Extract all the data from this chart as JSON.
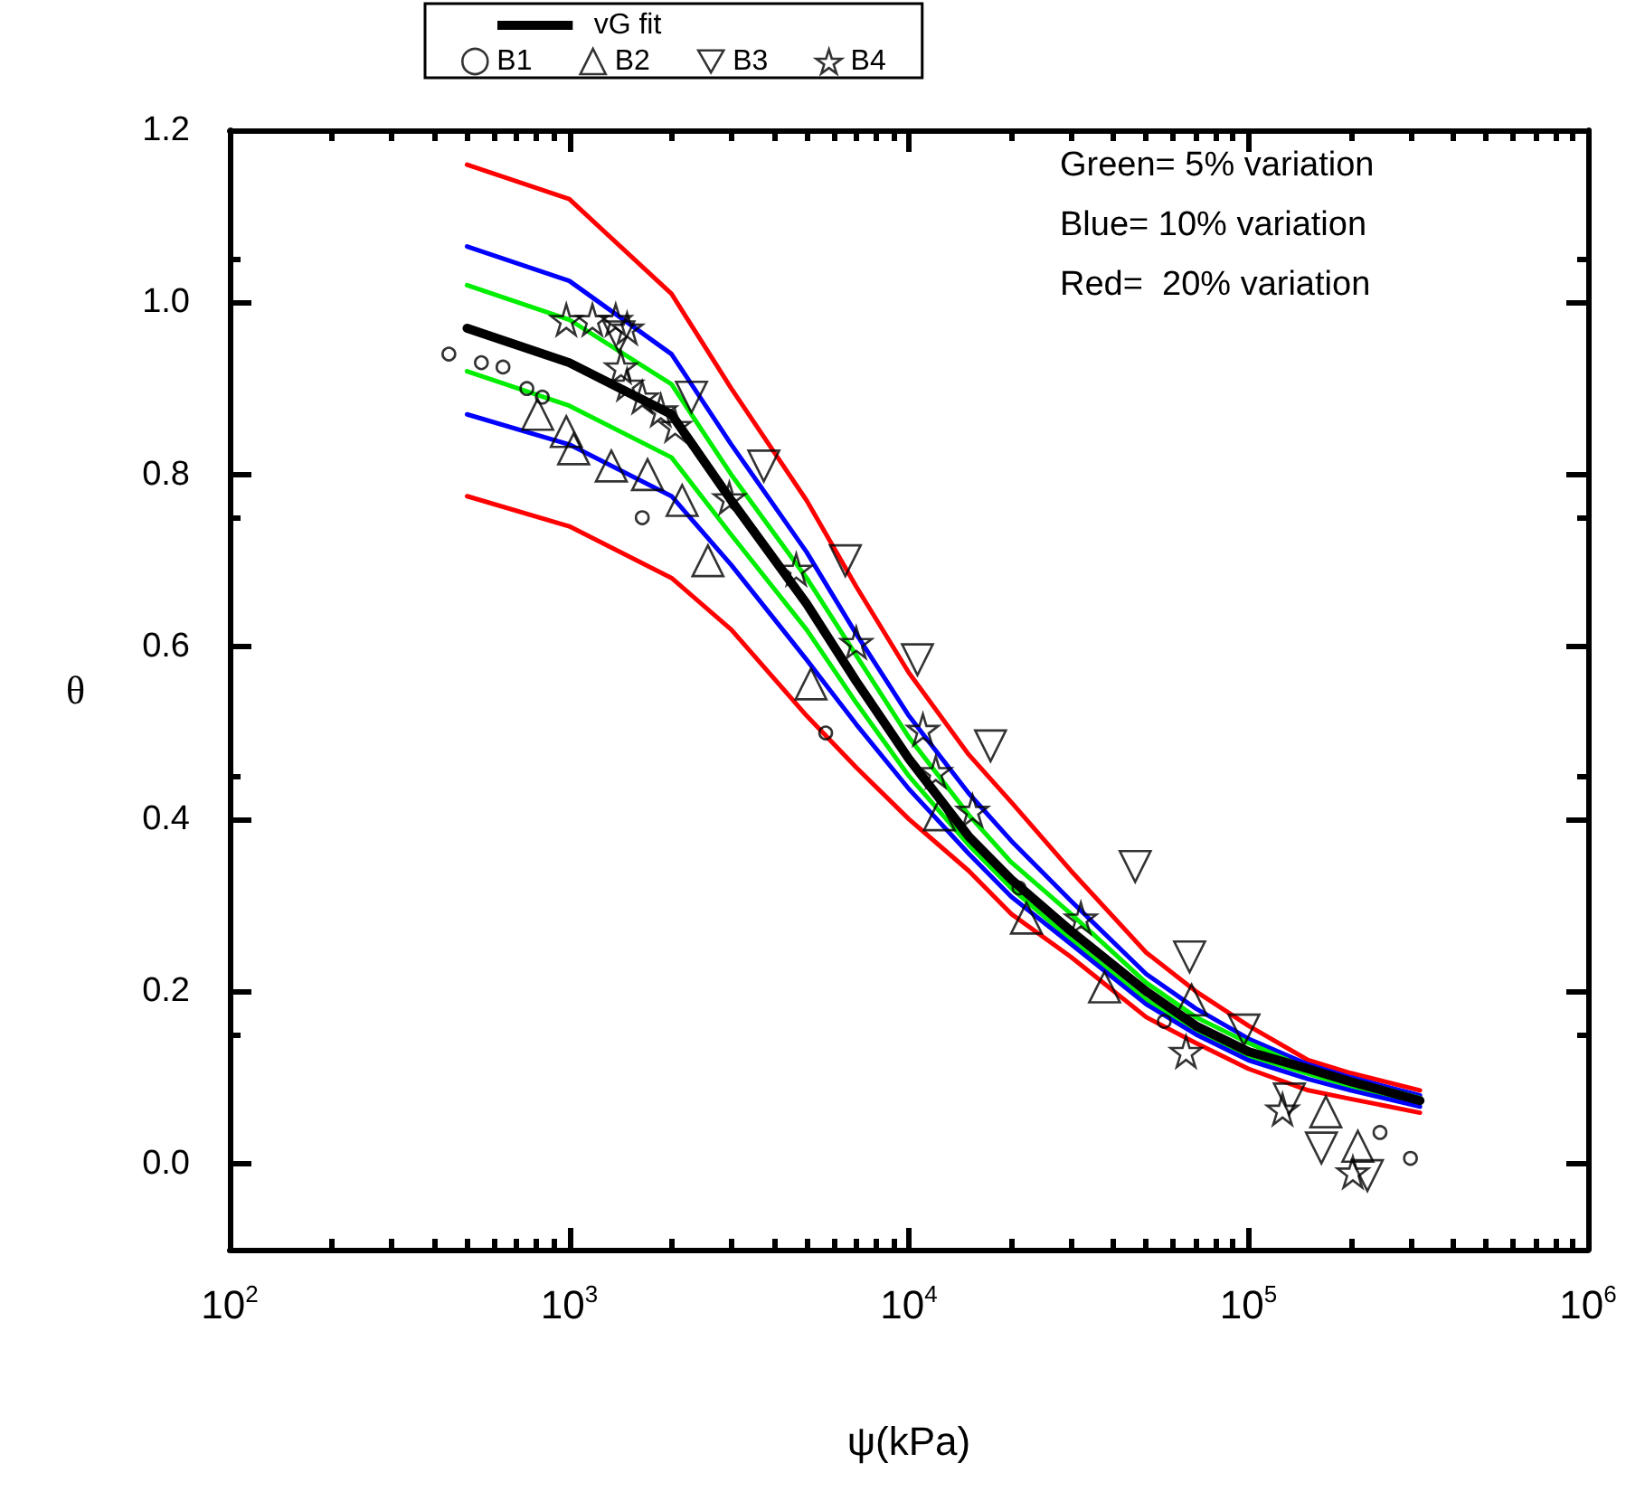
{
  "chart_data": {
    "type": "line",
    "xlabel": "ψ(kPa)",
    "ylabel": "θ",
    "log": "x",
    "xlim": [
      100,
      1000000
    ],
    "xticks": [
      {
        "value": 100,
        "label": "10$^{2}$"
      },
      {
        "value": 1000,
        "label": "10$^{3}$"
      },
      {
        "value": 10000,
        "label": "10$^{4}$"
      },
      {
        "value": 100000,
        "label": "10$^{5}$"
      },
      {
        "value": 1000000,
        "label": "10$^{6}$"
      }
    ],
    "ylim": [
      -0.1,
      1.2
    ],
    "yticks": [
      {
        "value": 0,
        "label": "0.0"
      },
      {
        "value": 0.2,
        "label": "0.2"
      },
      {
        "value": 0.4,
        "label": "0.4"
      },
      {
        "value": 0.6,
        "label": "0.6"
      },
      {
        "value": 0.8,
        "label": "0.8"
      },
      {
        "value": 1,
        "label": "1.0"
      },
      {
        "value": 1.2,
        "label": "1.2"
      }
    ],
    "grid": false,
    "legend": "top",
    "marker": "none",
    "line_style": "solid",
    "x": [
      500,
      1000,
      2000,
      3000,
      5000,
      7000,
      10000,
      15000,
      20000,
      30000,
      50000,
      70000,
      100000,
      150000,
      200000,
      320000
    ],
    "annotations": [
      "Green= 5% variation",
      "Blue= 10% variation",
      "Red=  20% variation"
    ],
    "series": [
      {
        "color": "#ff0000",
        "values": [
          1.16,
          1.12,
          1.01,
          0.9,
          0.77,
          0.67,
          0.57,
          0.475,
          0.42,
          0.34,
          0.245,
          0.2,
          0.16,
          0.12,
          0.105,
          0.085
        ]
      },
      {
        "color": "#0000ff",
        "values": [
          1.065,
          1.025,
          0.94,
          0.835,
          0.71,
          0.615,
          0.52,
          0.43,
          0.375,
          0.305,
          0.22,
          0.18,
          0.145,
          0.115,
          0.1,
          0.079
        ]
      },
      {
        "color": "#00ee00",
        "values": [
          1.02,
          0.98,
          0.905,
          0.8,
          0.68,
          0.59,
          0.495,
          0.405,
          0.35,
          0.29,
          0.21,
          0.17,
          0.14,
          0.11,
          0.097,
          0.076
        ]
      },
      {
        "color": "#00ee00",
        "values": [
          0.92,
          0.88,
          0.82,
          0.73,
          0.62,
          0.535,
          0.45,
          0.37,
          0.32,
          0.26,
          0.19,
          0.155,
          0.125,
          0.104,
          0.09,
          0.07
        ]
      },
      {
        "color": "#0000ff",
        "values": [
          0.87,
          0.835,
          0.775,
          0.695,
          0.585,
          0.51,
          0.435,
          0.36,
          0.31,
          0.255,
          0.185,
          0.15,
          0.12,
          0.098,
          0.085,
          0.066
        ]
      },
      {
        "color": "#ff0000",
        "values": [
          0.775,
          0.74,
          0.68,
          0.62,
          0.52,
          0.46,
          0.4,
          0.34,
          0.29,
          0.24,
          0.17,
          0.14,
          0.11,
          0.085,
          0.075,
          0.059
        ]
      },
      {
        "name": "vG fit",
        "color": "#000000",
        "values": [
          0.97,
          0.93,
          0.87,
          0.77,
          0.65,
          0.56,
          0.47,
          0.38,
          0.33,
          0.27,
          0.2,
          0.16,
          0.13,
          0.11,
          0.095,
          0.073
        ]
      },
      {
        "name": "B1",
        "type": "scatter",
        "marker": "circle",
        "color": "#000000",
        "x": [
          442,
          551,
          638,
          750,
          833,
          1640,
          5690,
          21100,
          56500,
          244000,
          300000
        ],
        "values": [
          0.94,
          0.93,
          0.925,
          0.9,
          0.89,
          0.75,
          0.5,
          0.32,
          0.165,
          0.036,
          0.006
        ]
      },
      {
        "name": "B2",
        "type": "scatter",
        "marker": "triangle",
        "color": "#000000",
        "x": [
          807,
          980,
          1030,
          1330,
          1700,
          2150,
          2560,
          5150,
          12300,
          22200,
          37700,
          68000,
          169000,
          210000
        ],
        "values": [
          0.87,
          0.85,
          0.83,
          0.81,
          0.8,
          0.77,
          0.7,
          0.557,
          0.405,
          0.285,
          0.205,
          0.19,
          0.06,
          0.02
        ]
      },
      {
        "name": "B3",
        "type": "scatter",
        "marker": "triangle-down",
        "color": "#000000",
        "x": [
          1400,
          2290,
          3740,
          6500,
          10600,
          17400,
          46400,
          67100,
          97000,
          132000,
          164000,
          224000
        ],
        "values": [
          0.96,
          0.89,
          0.81,
          0.7,
          0.585,
          0.485,
          0.345,
          0.24,
          0.155,
          0.075,
          0.018,
          -0.014
        ]
      },
      {
        "name": "B4",
        "type": "scatter",
        "marker": "star",
        "color": "#000000",
        "x": [
          980,
          1170,
          1370,
          1480,
          1420,
          1480,
          1640,
          1860,
          2050,
          2960,
          4660,
          7000,
          11000,
          12000,
          15400,
          32100,
          65500,
          126000,
          203000
        ],
        "values": [
          0.98,
          0.98,
          0.98,
          0.97,
          0.925,
          0.905,
          0.89,
          0.875,
          0.857,
          0.773,
          0.69,
          0.605,
          0.504,
          0.455,
          0.41,
          0.285,
          0.13,
          0.063,
          -0.01
        ]
      }
    ]
  }
}
